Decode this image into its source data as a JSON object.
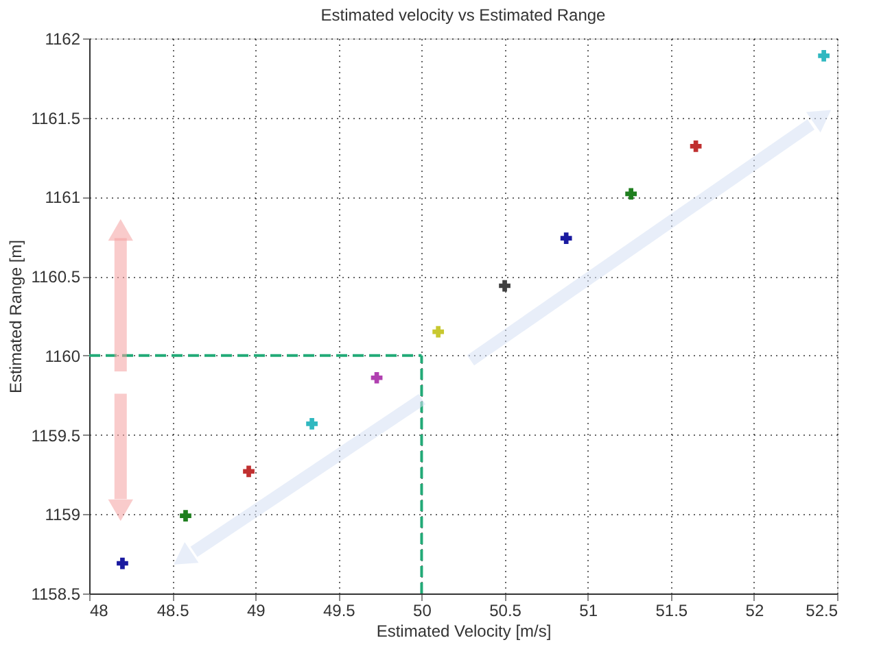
{
  "chart_data": {
    "type": "scatter",
    "title": "Estimated velocity vs Estimated Range",
    "xlabel": "Estimated Velocity [m/s]",
    "ylabel": "Estimated Range [m]",
    "xlim": [
      48,
      52.5
    ],
    "xticks": [
      48,
      48.5,
      49,
      49.5,
      50,
      50.5,
      51,
      51.5,
      52,
      52.5
    ],
    "ylim": [
      1158.5,
      1162
    ],
    "yticks": [
      1158.5,
      1159,
      1159.5,
      1160,
      1160.5,
      1161,
      1161.5,
      1162
    ],
    "grid": true,
    "marker": "cross",
    "series": [
      {
        "color": "#1a1aa0",
        "x": [
          48.2,
          50.87
        ],
        "values": [
          1158.69,
          1160.74
        ]
      },
      {
        "color": "#1f7f1f",
        "x": [
          48.58,
          51.26
        ],
        "values": [
          1158.99,
          1161.02
        ]
      },
      {
        "color": "#c03030",
        "x": [
          48.96,
          51.65
        ],
        "values": [
          1159.27,
          1161.32
        ]
      },
      {
        "color": "#30b8c0",
        "x": [
          49.34,
          52.42
        ],
        "values": [
          1159.57,
          1161.89
        ]
      },
      {
        "color": "#b040b0",
        "x": [
          49.73
        ],
        "values": [
          1159.86
        ]
      },
      {
        "color": "#c8c830",
        "x": [
          50.1
        ],
        "values": [
          1160.15
        ]
      },
      {
        "color": "#404040",
        "x": [
          50.5
        ],
        "values": [
          1160.44
        ]
      }
    ],
    "ref_lines": [
      {
        "axis": "y",
        "value": 1160,
        "color": "#22aa77",
        "line_style": "dashed"
      },
      {
        "axis": "x",
        "value": 50,
        "color": "#22aa77",
        "line_style": "dashed"
      }
    ]
  }
}
